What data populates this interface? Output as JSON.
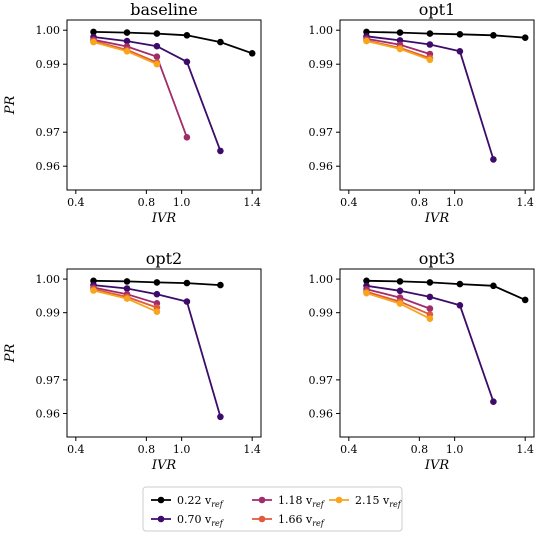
{
  "chart_data": [
    {
      "type": "line",
      "title": "baseline",
      "xlabel": "IVR",
      "ylabel": "PR",
      "xlim": [
        0.35,
        1.45
      ],
      "ylim": [
        0.953,
        1.003
      ],
      "xticks": [
        "0.4",
        "0.8",
        "1.0",
        "1.4"
      ],
      "yticks": [
        "1.00",
        "0.99",
        "0.97",
        "0.96"
      ],
      "series": [
        {
          "name": "0.22 v_ref",
          "x": [
            0.5,
            0.69,
            0.86,
            1.03,
            1.22,
            1.4
          ],
          "y": [
            0.9995,
            0.9993,
            0.999,
            0.9985,
            0.9965,
            0.9932
          ]
        },
        {
          "name": "0.70 v_ref",
          "x": [
            0.5,
            0.69,
            0.86,
            1.03,
            1.22
          ],
          "y": [
            0.998,
            0.9968,
            0.9953,
            0.9907,
            0.9645
          ]
        },
        {
          "name": "1.18 v_ref",
          "x": [
            0.5,
            0.69,
            0.86,
            1.03
          ],
          "y": [
            0.9972,
            0.9952,
            0.9922,
            0.9685
          ]
        },
        {
          "name": "1.66 v_ref",
          "x": [
            0.5,
            0.69,
            0.86
          ],
          "y": [
            0.9968,
            0.9942,
            0.9905
          ]
        },
        {
          "name": "2.15 v_ref",
          "x": [
            0.5,
            0.69,
            0.86
          ],
          "y": [
            0.9965,
            0.9938,
            0.99
          ]
        }
      ]
    },
    {
      "type": "line",
      "title": "opt1",
      "xlabel": "IVR",
      "ylabel": "",
      "xlim": [
        0.35,
        1.45
      ],
      "ylim": [
        0.953,
        1.003
      ],
      "xticks": [
        "0.4",
        "0.8",
        "1.0",
        "1.4"
      ],
      "yticks": [
        "1.00",
        "0.99",
        "0.97",
        "0.96"
      ],
      "series": [
        {
          "name": "0.22 v_ref",
          "x": [
            0.5,
            0.69,
            0.86,
            1.03,
            1.22,
            1.4
          ],
          "y": [
            0.9995,
            0.9993,
            0.999,
            0.9988,
            0.9985,
            0.9978
          ]
        },
        {
          "name": "0.70 v_ref",
          "x": [
            0.5,
            0.69,
            0.86,
            1.03,
            1.22
          ],
          "y": [
            0.9982,
            0.997,
            0.9958,
            0.9938,
            0.962
          ]
        },
        {
          "name": "1.18 v_ref",
          "x": [
            0.5,
            0.69,
            0.86
          ],
          "y": [
            0.9975,
            0.9957,
            0.993
          ]
        },
        {
          "name": "1.66 v_ref",
          "x": [
            0.5,
            0.69,
            0.86
          ],
          "y": [
            0.997,
            0.9948,
            0.9918
          ]
        },
        {
          "name": "2.15 v_ref",
          "x": [
            0.5,
            0.69,
            0.86
          ],
          "y": [
            0.9968,
            0.9945,
            0.9913
          ]
        }
      ]
    },
    {
      "type": "line",
      "title": "opt2",
      "xlabel": "IVR",
      "ylabel": "PR",
      "xlim": [
        0.35,
        1.45
      ],
      "ylim": [
        0.953,
        1.003
      ],
      "xticks": [
        "0.4",
        "0.8",
        "1.0",
        "1.4"
      ],
      "yticks": [
        "1.00",
        "0.99",
        "0.97",
        "0.96"
      ],
      "series": [
        {
          "name": "0.22 v_ref",
          "x": [
            0.5,
            0.69,
            0.86,
            1.03,
            1.22
          ],
          "y": [
            0.9995,
            0.9993,
            0.999,
            0.9988,
            0.9982
          ]
        },
        {
          "name": "0.70 v_ref",
          "x": [
            0.5,
            0.69,
            0.86,
            1.03,
            1.22
          ],
          "y": [
            0.9982,
            0.9972,
            0.9955,
            0.9933,
            0.959
          ]
        },
        {
          "name": "1.18 v_ref",
          "x": [
            0.5,
            0.69,
            0.86
          ],
          "y": [
            0.9975,
            0.9955,
            0.9928
          ]
        },
        {
          "name": "1.66 v_ref",
          "x": [
            0.5,
            0.69,
            0.86
          ],
          "y": [
            0.997,
            0.9947,
            0.9915
          ]
        },
        {
          "name": "2.15 v_ref",
          "x": [
            0.5,
            0.69,
            0.86
          ],
          "y": [
            0.9966,
            0.9942,
            0.9903
          ]
        }
      ]
    },
    {
      "type": "line",
      "title": "opt3",
      "xlabel": "IVR",
      "ylabel": "",
      "xlim": [
        0.35,
        1.45
      ],
      "ylim": [
        0.953,
        1.003
      ],
      "xticks": [
        "0.4",
        "0.8",
        "1.0",
        "1.4"
      ],
      "yticks": [
        "1.00",
        "0.99",
        "0.97",
        "0.96"
      ],
      "series": [
        {
          "name": "0.22 v_ref",
          "x": [
            0.5,
            0.69,
            0.86,
            1.03,
            1.22,
            1.4
          ],
          "y": [
            0.9995,
            0.9993,
            0.999,
            0.9985,
            0.998,
            0.9938
          ]
        },
        {
          "name": "0.70 v_ref",
          "x": [
            0.5,
            0.69,
            0.86,
            1.03,
            1.22
          ],
          "y": [
            0.998,
            0.9965,
            0.9947,
            0.9922,
            0.9635
          ]
        },
        {
          "name": "1.18 v_ref",
          "x": [
            0.5,
            0.69,
            0.86
          ],
          "y": [
            0.997,
            0.9945,
            0.9912
          ]
        },
        {
          "name": "1.66 v_ref",
          "x": [
            0.5,
            0.69,
            0.86
          ],
          "y": [
            0.9962,
            0.9933,
            0.9895
          ]
        },
        {
          "name": "2.15 v_ref",
          "x": [
            0.5,
            0.69,
            0.86
          ],
          "y": [
            0.9958,
            0.9927,
            0.9882
          ]
        }
      ]
    }
  ],
  "legend": {
    "placement": "bottom-center",
    "entries": [
      {
        "label": "0.22 v",
        "sub": "ref",
        "color": "#000000"
      },
      {
        "label": "0.70 v",
        "sub": "ref",
        "color": "#3d0c6b"
      },
      {
        "label": "1.18 v",
        "sub": "ref",
        "color": "#a02c6a"
      },
      {
        "label": "1.66 v",
        "sub": "ref",
        "color": "#e05a3c"
      },
      {
        "label": "2.15 v",
        "sub": "ref",
        "color": "#f8a51c"
      }
    ]
  },
  "series_colors": [
    "#000000",
    "#3d0c6b",
    "#a02c6a",
    "#e05a3c",
    "#f8a51c"
  ]
}
